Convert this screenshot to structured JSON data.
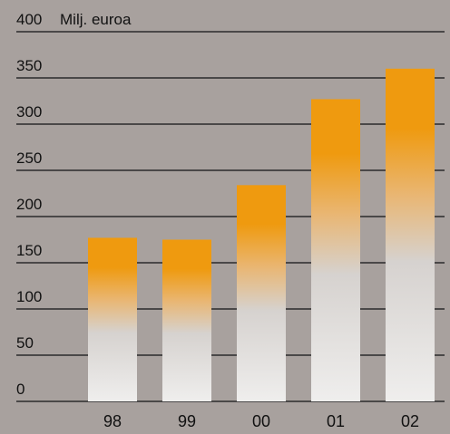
{
  "chart_data": {
    "type": "bar",
    "unit_label": "Milj. euroa",
    "categories": [
      "98",
      "99",
      "00",
      "01",
      "02"
    ],
    "values": [
      177,
      175,
      234,
      327,
      360
    ],
    "ylim": [
      0,
      400
    ],
    "yticks": [
      0,
      50,
      100,
      150,
      200,
      250,
      300,
      350,
      400
    ],
    "grid": true,
    "colors": {
      "background": "#a8a19e",
      "bar_top": "#ef9a0f",
      "bar_bottom": "#efeeed",
      "grid": "#2b2b2b",
      "text": "#111111"
    }
  }
}
